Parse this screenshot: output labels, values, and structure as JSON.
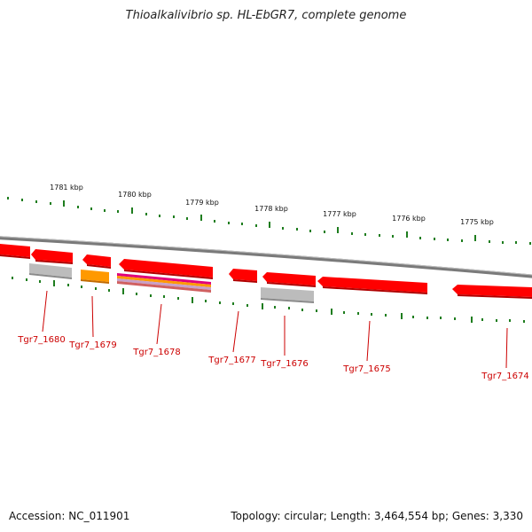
{
  "title": "Thioalkalivibrio sp. HL-EbGR7, complete genome",
  "accession_label": "Accession:",
  "accession": "NC_011901",
  "summary": "Topology: circular; Length: 3,464,554 bp; Genes: 3,330",
  "kbp_ticks": [
    "1781 kbp",
    "1780 kbp",
    "1779 kbp",
    "1778 kbp",
    "1777 kbp",
    "1776 kbp",
    "1775 kbp"
  ],
  "genes": [
    "Tgr7_1680",
    "Tgr7_1679",
    "Tgr7_1678",
    "Tgr7_1677",
    "Tgr7_1676",
    "Tgr7_1675",
    "Tgr7_1674"
  ],
  "colors": {
    "gene": "#ff0000",
    "gene_shade": "#b00000",
    "backbone": "#808080",
    "tick": "#1e7d1e",
    "label": "#cc0000",
    "orange": "#ff9900",
    "magenta": "#e0007a",
    "grey_feature": "#b8b8b8"
  }
}
